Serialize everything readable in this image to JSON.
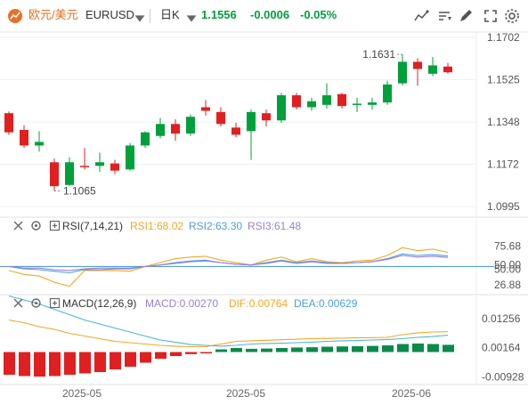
{
  "header": {
    "instrument_name": "欧元/美元",
    "symbol": "EURUSD",
    "timeframe": "日K",
    "price": "1.1556",
    "change": "-0.0006",
    "change_pct": "-0.05%",
    "up_color": "#00a03a",
    "down_color": "#e02020",
    "icons": [
      "line-chart-icon",
      "sort-icon",
      "draw-tools-icon",
      "layers-icon",
      "expand-icon",
      "settings-icon"
    ]
  },
  "panels": {
    "rsi": {
      "title": "RSI(7,14,21)",
      "rsi1": "RSI1:68.02",
      "rsi2": "RSI2:63.30",
      "rsi3": "RSI3:61.48"
    },
    "macd": {
      "title": "MACD(12,26,9)",
      "macd": "MACD:0.00270",
      "dif": "DIF:0.00764",
      "dea": "DEA:0.00629"
    }
  },
  "chart_data": [
    {
      "type": "candlestick",
      "title": "",
      "y_ticks": [
        "1.1702",
        "1.1525",
        "1.1348",
        "1.1172",
        "1.0995"
      ],
      "ylim": [
        1.0995,
        1.1702
      ],
      "x_ticks": [
        "2025-05",
        "2025-05",
        "2025-06"
      ],
      "annotations": [
        {
          "text": "1.1631",
          "value": 1.1631
        },
        {
          "text": "1.1065",
          "value": 1.1065
        }
      ],
      "candles": [
        {
          "o": 1.1385,
          "h": 1.1392,
          "l": 1.1295,
          "c": 1.1305
        },
        {
          "o": 1.1315,
          "h": 1.1335,
          "l": 1.124,
          "c": 1.125
        },
        {
          "o": 1.125,
          "h": 1.131,
          "l": 1.1225,
          "c": 1.1265
        },
        {
          "o": 1.118,
          "h": 1.1195,
          "l": 1.106,
          "c": 1.108
        },
        {
          "o": 1.1085,
          "h": 1.12,
          "l": 1.108,
          "c": 1.118
        },
        {
          "o": 1.1165,
          "h": 1.124,
          "l": 1.115,
          "c": 1.116
        },
        {
          "o": 1.1165,
          "h": 1.122,
          "l": 1.114,
          "c": 1.118
        },
        {
          "o": 1.1175,
          "h": 1.119,
          "l": 1.113,
          "c": 1.1145
        },
        {
          "o": 1.115,
          "h": 1.126,
          "l": 1.1145,
          "c": 1.125
        },
        {
          "o": 1.125,
          "h": 1.131,
          "l": 1.124,
          "c": 1.1305
        },
        {
          "o": 1.129,
          "h": 1.1365,
          "l": 1.128,
          "c": 1.134
        },
        {
          "o": 1.134,
          "h": 1.136,
          "l": 1.127,
          "c": 1.13
        },
        {
          "o": 1.13,
          "h": 1.138,
          "l": 1.129,
          "c": 1.137
        },
        {
          "o": 1.141,
          "h": 1.144,
          "l": 1.1375,
          "c": 1.1395
        },
        {
          "o": 1.139,
          "h": 1.141,
          "l": 1.133,
          "c": 1.134
        },
        {
          "o": 1.1325,
          "h": 1.1345,
          "l": 1.1285,
          "c": 1.1295
        },
        {
          "o": 1.131,
          "h": 1.14,
          "l": 1.119,
          "c": 1.139
        },
        {
          "o": 1.1385,
          "h": 1.14,
          "l": 1.133,
          "c": 1.1355
        },
        {
          "o": 1.1355,
          "h": 1.147,
          "l": 1.1345,
          "c": 1.146
        },
        {
          "o": 1.146,
          "h": 1.147,
          "l": 1.14,
          "c": 1.141
        },
        {
          "o": 1.141,
          "h": 1.145,
          "l": 1.1395,
          "c": 1.1435
        },
        {
          "o": 1.142,
          "h": 1.151,
          "l": 1.1405,
          "c": 1.146
        },
        {
          "o": 1.1465,
          "h": 1.147,
          "l": 1.1405,
          "c": 1.1415
        },
        {
          "o": 1.142,
          "h": 1.145,
          "l": 1.139,
          "c": 1.1425
        },
        {
          "o": 1.142,
          "h": 1.145,
          "l": 1.14,
          "c": 1.143
        },
        {
          "o": 1.143,
          "h": 1.152,
          "l": 1.142,
          "c": 1.1505
        },
        {
          "o": 1.151,
          "h": 1.1631,
          "l": 1.15,
          "c": 1.16
        },
        {
          "o": 1.16,
          "h": 1.1615,
          "l": 1.15,
          "c": 1.157
        },
        {
          "o": 1.155,
          "h": 1.162,
          "l": 1.154,
          "c": 1.1585
        },
        {
          "o": 1.158,
          "h": 1.1595,
          "l": 1.155,
          "c": 1.1556
        }
      ]
    },
    {
      "type": "line",
      "title": "RSI(7,14,21)",
      "y_ticks": [
        "75.68",
        "50.00",
        "50.00",
        "26.88"
      ],
      "ylim": [
        20,
        90
      ],
      "series": [
        {
          "name": "RSI1",
          "color": "#f5a623",
          "values": [
            45,
            40,
            38,
            30,
            25,
            45,
            45,
            45,
            44,
            50,
            55,
            60,
            62,
            63,
            58,
            55,
            52,
            58,
            62,
            56,
            60,
            56,
            55,
            57,
            58,
            64,
            74,
            70,
            72,
            68
          ]
        },
        {
          "name": "RSI2",
          "color": "#4a9fe0",
          "values": [
            50,
            47,
            46,
            44,
            42,
            46,
            46,
            47,
            47,
            50,
            52,
            55,
            57,
            58,
            55,
            53,
            52,
            55,
            58,
            55,
            57,
            55,
            54,
            55,
            56,
            60,
            66,
            64,
            65,
            63.3
          ]
        },
        {
          "name": "RSI3",
          "color": "#9b7fd6",
          "values": [
            50,
            48,
            48,
            46,
            45,
            47,
            48,
            48,
            48,
            50,
            52,
            54,
            56,
            57,
            55,
            53,
            52,
            54,
            57,
            54,
            56,
            54,
            54,
            55,
            56,
            59,
            64,
            62,
            63,
            61.5
          ]
        }
      ],
      "reference_value": 50
    },
    {
      "type": "bar",
      "title": "MACD(12,26,9)",
      "y_ticks": [
        "0.01256",
        "0.00164",
        "-0.00928"
      ],
      "ylim": [
        -0.0115,
        0.0145
      ],
      "histogram": [
        -0.0085,
        -0.009,
        -0.0092,
        -0.009,
        -0.0085,
        -0.008,
        -0.0075,
        -0.0065,
        -0.0055,
        -0.004,
        -0.0025,
        -0.0015,
        -0.0008,
        -0.0005,
        0.001,
        0.0015,
        0.0012,
        0.0013,
        0.0015,
        0.0017,
        0.0018,
        0.002,
        0.0021,
        0.0022,
        0.0023,
        0.0025,
        0.003,
        0.0032,
        0.003,
        0.0027
      ],
      "dif": [
        0.012,
        0.011,
        0.0095,
        0.0085,
        0.007,
        0.006,
        0.005,
        0.004,
        0.0035,
        0.003,
        0.0025,
        0.0022,
        0.002,
        0.002,
        0.003,
        0.004,
        0.0042,
        0.0044,
        0.0046,
        0.0048,
        0.005,
        0.0051,
        0.0052,
        0.0053,
        0.0054,
        0.0055,
        0.0065,
        0.0072,
        0.0075,
        0.0076
      ],
      "dea": [
        0.021,
        0.0195,
        0.018,
        0.016,
        0.014,
        0.012,
        0.0105,
        0.009,
        0.0075,
        0.006,
        0.0045,
        0.0037,
        0.0028,
        0.0025,
        0.0022,
        0.0025,
        0.003,
        0.0032,
        0.0033,
        0.0035,
        0.0037,
        0.004,
        0.0042,
        0.0043,
        0.0045,
        0.0047,
        0.005,
        0.0055,
        0.0058,
        0.0063
      ]
    }
  ]
}
